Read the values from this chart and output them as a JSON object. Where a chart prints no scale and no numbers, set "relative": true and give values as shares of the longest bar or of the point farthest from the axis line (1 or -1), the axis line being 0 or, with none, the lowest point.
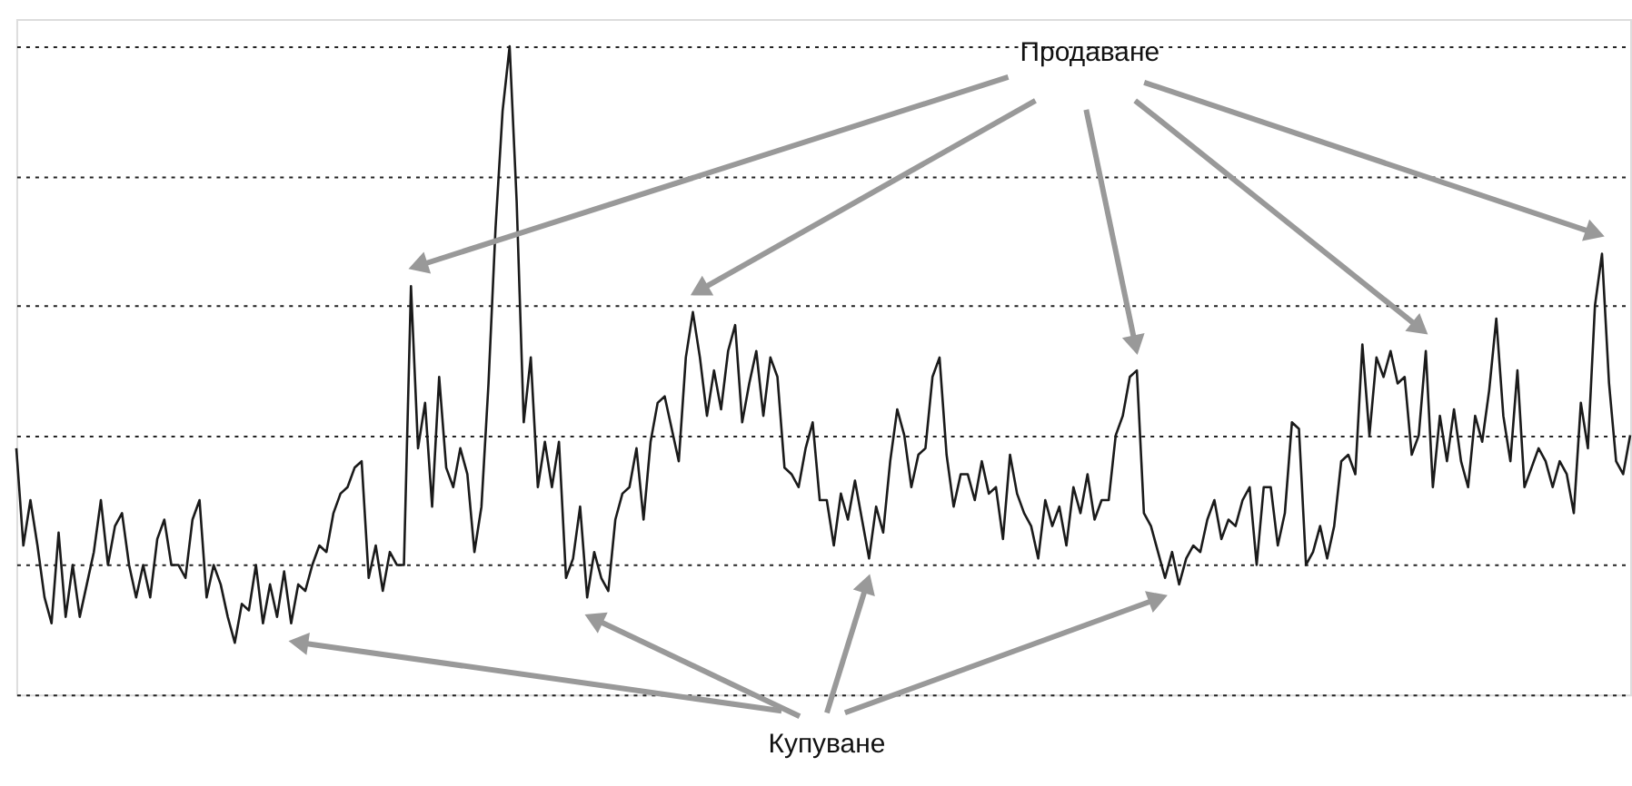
{
  "chart_data": {
    "type": "line",
    "relative": true,
    "grid": "y",
    "categories": [
      null,
      null,
      null,
      null,
      null,
      null,
      null,
      null,
      null,
      null,
      null,
      null,
      null,
      null,
      null,
      null,
      null,
      null,
      null,
      null,
      null,
      null,
      null,
      null,
      null,
      null,
      null,
      null,
      null,
      null,
      null,
      null,
      null,
      null,
      null,
      null,
      null,
      null,
      null,
      null,
      null,
      null,
      null,
      null,
      null,
      null,
      null,
      null,
      null,
      null,
      null,
      null,
      null,
      null,
      null,
      null,
      null,
      null,
      null,
      null,
      null,
      null,
      null,
      null,
      null,
      null,
      null,
      null,
      null,
      null,
      null,
      null,
      null,
      null,
      null,
      null,
      null,
      null,
      null,
      null,
      null,
      null,
      null,
      null,
      null,
      null,
      null,
      null,
      null,
      null,
      null,
      null,
      null,
      null,
      null,
      null,
      null,
      null,
      null,
      null,
      null,
      null,
      null,
      null,
      null,
      null,
      null,
      null,
      null,
      null,
      null,
      null,
      null,
      null,
      null,
      null,
      null,
      null,
      null,
      null,
      null,
      null,
      null,
      null,
      null,
      null,
      null,
      null,
      null,
      null,
      null,
      null,
      null,
      null,
      null,
      null,
      null,
      null,
      null,
      null,
      null,
      null,
      null,
      null,
      null,
      null,
      null,
      null,
      null,
      null,
      null,
      null,
      null,
      null,
      null,
      null,
      null,
      null,
      null,
      null,
      null,
      null,
      null,
      null,
      null,
      null,
      null,
      null,
      null,
      null,
      null,
      null,
      null,
      null,
      null,
      null,
      null,
      null,
      null,
      null,
      null,
      null,
      null,
      null,
      null,
      null,
      null,
      null,
      null,
      null,
      null,
      null,
      null,
      null,
      null,
      null,
      null,
      null,
      null,
      null,
      null,
      null,
      null,
      null,
      null,
      null,
      null,
      null,
      null,
      null,
      null,
      null,
      null,
      null,
      null,
      null,
      null,
      null,
      null,
      null,
      null,
      null,
      null,
      null,
      null,
      null,
      null,
      null,
      null,
      null
    ],
    "series": [
      {
        "color": "#1a1a1a",
        "values": [
          0.38,
          0.23,
          0.3,
          0.23,
          0.15,
          0.11,
          0.25,
          0.12,
          0.2,
          0.12,
          0.17,
          0.22,
          0.3,
          0.2,
          0.26,
          0.28,
          0.2,
          0.15,
          0.2,
          0.15,
          0.24,
          0.27,
          0.2,
          0.2,
          0.18,
          0.27,
          0.3,
          0.15,
          0.2,
          0.17,
          0.12,
          0.08,
          0.14,
          0.13,
          0.2,
          0.11,
          0.17,
          0.12,
          0.19,
          0.11,
          0.17,
          0.16,
          0.2,
          0.23,
          0.22,
          0.28,
          0.31,
          0.32,
          0.35,
          0.36,
          0.18,
          0.23,
          0.16,
          0.22,
          0.2,
          0.2,
          0.63,
          0.38,
          0.45,
          0.29,
          0.49,
          0.35,
          0.32,
          0.38,
          0.34,
          0.22,
          0.29,
          0.48,
          0.72,
          0.9,
          1.0,
          0.76,
          0.42,
          0.52,
          0.32,
          0.39,
          0.32,
          0.39,
          0.18,
          0.21,
          0.29,
          0.15,
          0.22,
          0.18,
          0.16,
          0.27,
          0.31,
          0.32,
          0.38,
          0.27,
          0.39,
          0.45,
          0.46,
          0.41,
          0.36,
          0.52,
          0.59,
          0.52,
          0.43,
          0.5,
          0.44,
          0.53,
          0.57,
          0.42,
          0.48,
          0.53,
          0.43,
          0.52,
          0.49,
          0.35,
          0.34,
          0.32,
          0.38,
          0.42,
          0.3,
          0.3,
          0.23,
          0.31,
          0.27,
          0.33,
          0.27,
          0.21,
          0.29,
          0.25,
          0.36,
          0.44,
          0.4,
          0.32,
          0.37,
          0.38,
          0.49,
          0.52,
          0.37,
          0.29,
          0.34,
          0.34,
          0.3,
          0.36,
          0.31,
          0.32,
          0.24,
          0.37,
          0.31,
          0.28,
          0.26,
          0.21,
          0.3,
          0.26,
          0.29,
          0.23,
          0.32,
          0.28,
          0.34,
          0.27,
          0.3,
          0.3,
          0.4,
          0.43,
          0.49,
          0.5,
          0.28,
          0.26,
          0.22,
          0.18,
          0.22,
          0.17,
          0.21,
          0.23,
          0.22,
          0.27,
          0.3,
          0.24,
          0.27,
          0.26,
          0.3,
          0.32,
          0.2,
          0.32,
          0.32,
          0.23,
          0.28,
          0.42,
          0.41,
          0.2,
          0.22,
          0.26,
          0.21,
          0.26,
          0.36,
          0.37,
          0.34,
          0.54,
          0.4,
          0.52,
          0.49,
          0.53,
          0.48,
          0.49,
          0.37,
          0.4,
          0.53,
          0.32,
          0.43,
          0.36,
          0.44,
          0.36,
          0.32,
          0.43,
          0.39,
          0.47,
          0.58,
          0.43,
          0.36,
          0.5,
          0.32,
          0.35,
          0.38,
          0.36,
          0.32,
          0.36,
          0.34,
          0.28,
          0.45,
          0.38,
          0.6,
          0.68,
          0.48,
          0.36,
          0.34,
          0.4
        ]
      }
    ],
    "annotations": [
      "Продаване",
      "Купуване"
    ]
  }
}
